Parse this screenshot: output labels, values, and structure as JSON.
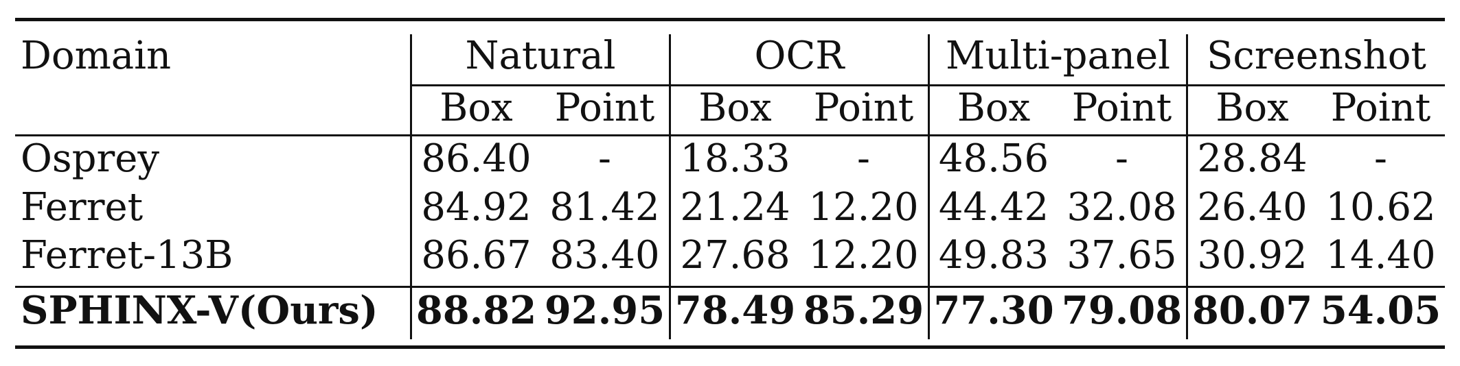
{
  "header": {
    "domain_label": "Domain",
    "groups": [
      "Natural",
      "OCR",
      "Multi-panel",
      "Screenshot"
    ],
    "subheaders": [
      "Box",
      "Point",
      "Box",
      "Point",
      "Box",
      "Point",
      "Box",
      "Point"
    ]
  },
  "rows": [
    {
      "name": "Osprey",
      "values": [
        "86.40",
        "-",
        "18.33",
        "-",
        "48.56",
        "-",
        "28.84",
        "-"
      ],
      "bold": false
    },
    {
      "name": "Ferret",
      "values": [
        "84.92",
        "81.42",
        "21.24",
        "12.20",
        "44.42",
        "32.08",
        "26.40",
        "10.62"
      ],
      "bold": false
    },
    {
      "name": "Ferret-13B",
      "values": [
        "86.67",
        "83.40",
        "27.68",
        "12.20",
        "49.83",
        "37.65",
        "30.92",
        "14.40"
      ],
      "bold": false
    },
    {
      "name": "SPHINX-V(Ours)",
      "values": [
        "88.82",
        "92.95",
        "78.49",
        "85.29",
        "77.30",
        "79.08",
        "80.07",
        "54.05"
      ],
      "bold": true
    }
  ]
}
